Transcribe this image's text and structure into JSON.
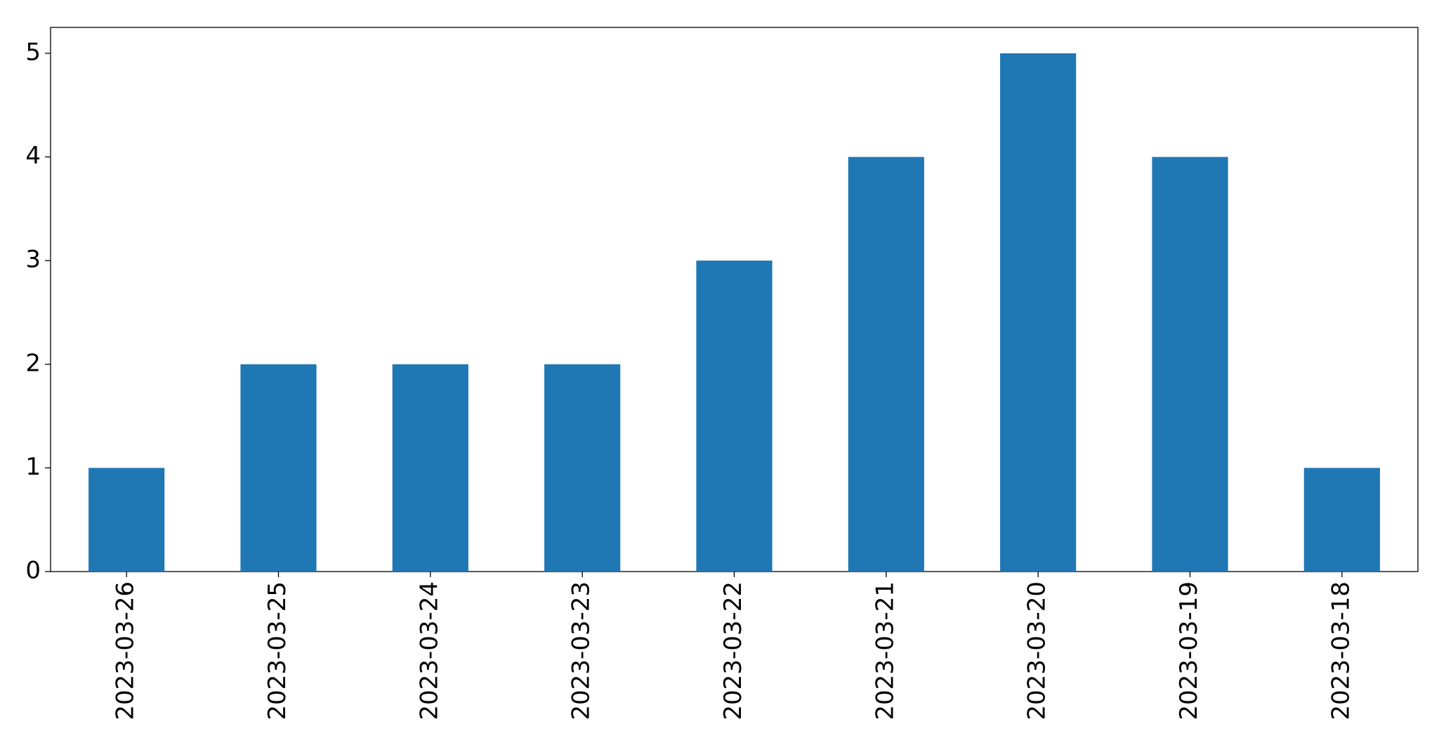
{
  "chart_data": {
    "type": "bar",
    "categories": [
      "2023-03-26",
      "2023-03-25",
      "2023-03-24",
      "2023-03-23",
      "2023-03-22",
      "2023-03-21",
      "2023-03-20",
      "2023-03-19",
      "2023-03-18"
    ],
    "values": [
      1,
      2,
      2,
      2,
      3,
      4,
      5,
      4,
      1
    ],
    "color": "#1f77b4",
    "ylim": [
      0,
      5.25
    ],
    "yticks": [
      0,
      1,
      2,
      3,
      4,
      5
    ],
    "grid": false
  }
}
